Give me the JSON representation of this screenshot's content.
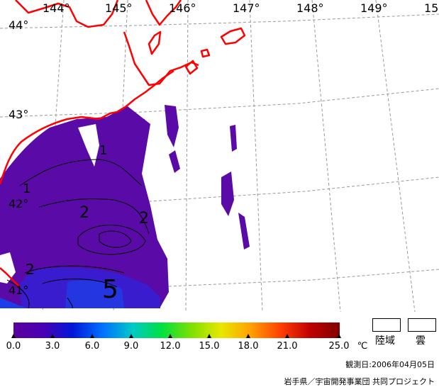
{
  "map": {
    "lon_labels": [
      "144°",
      "145°",
      "146°",
      "147°",
      "148°",
      "149°",
      "15"
    ],
    "lat_labels": [
      "44°",
      "43°",
      "42°",
      "41°"
    ],
    "contour_labels": [
      "1",
      "1",
      "2",
      "2",
      "2",
      "5"
    ]
  },
  "colorbar": {
    "ticks": [
      "0.0",
      "3.0",
      "6.0",
      "9.0",
      "12.0",
      "15.0",
      "18.0",
      "21.0",
      "25.0"
    ],
    "unit": "℃",
    "colors": [
      "#5a009e",
      "#4b00b4",
      "#0018d8",
      "#0070ff",
      "#00c8c8",
      "#00e040",
      "#7ee000",
      "#e8e800",
      "#ffa000",
      "#ff4000",
      "#c00000",
      "#800000"
    ]
  },
  "legend": {
    "land_label": "陸域",
    "cloud_label": "雲"
  },
  "footer": {
    "date": "観測日:2006年04月05日",
    "credit": "岩手県／宇宙開発事業団 共同プロジェクト"
  }
}
